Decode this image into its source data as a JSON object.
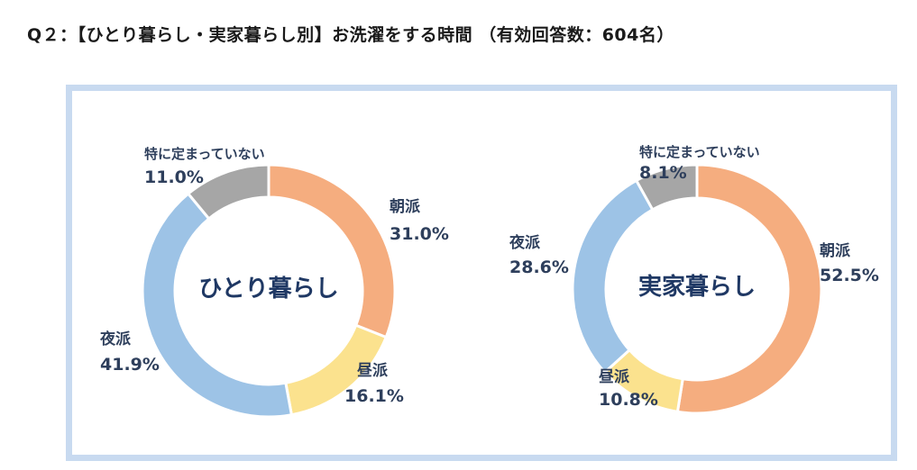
{
  "heading": "Q２：【ひとり暮らし・実家暮らし別】お洗濯をする時間 （有効回答数：604名）",
  "colors": {
    "morning": "#f5ad7f",
    "daytime": "#fbe28e",
    "night": "#9dc3e6",
    "none": "#a6a6a6",
    "frame": "#c8daf0",
    "label": "#2e3f5c"
  },
  "chart_data": [
    {
      "type": "pie",
      "center_label": "ひとり暮らし",
      "slices": [
        {
          "category": "朝派",
          "value": 31.0,
          "label": "31.0%",
          "color": "#f5ad7f"
        },
        {
          "category": "昼派",
          "value": 16.1,
          "label": "16.1%",
          "color": "#fbe28e"
        },
        {
          "category": "夜派",
          "value": 41.9,
          "label": "41.9%",
          "color": "#9dc3e6"
        },
        {
          "category": "特に定まっていない",
          "value": 11.0,
          "label": "11.0%",
          "color": "#a6a6a6"
        }
      ]
    },
    {
      "type": "pie",
      "center_label": "実家暮らし",
      "slices": [
        {
          "category": "朝派",
          "value": 52.5,
          "label": "52.5%",
          "color": "#f5ad7f"
        },
        {
          "category": "昼派",
          "value": 10.8,
          "label": "10.8%",
          "color": "#fbe28e"
        },
        {
          "category": "夜派",
          "value": 28.6,
          "label": "28.6%",
          "color": "#9dc3e6"
        },
        {
          "category": "特に定まっていない",
          "value": 8.1,
          "label": "8.1%",
          "color": "#a6a6a6"
        }
      ]
    }
  ]
}
